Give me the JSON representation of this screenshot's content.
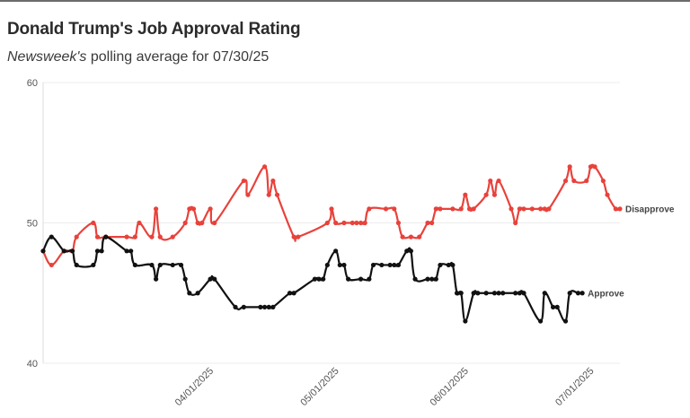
{
  "header": {
    "title": "Donald Trump's Job Approval Rating",
    "subtitle_source": "Newsweek's",
    "subtitle_rest": " polling average for 07/30/25"
  },
  "colors": {
    "approve": "#111111",
    "disapprove": "#e8423b",
    "grid": "#ececec"
  },
  "chart_data": {
    "type": "line",
    "title": "Donald Trump's Job Approval Rating",
    "subtitle": "Newsweek's polling average for 07/30/25",
    "xlabel": "",
    "ylabel": "",
    "ylim": [
      40,
      60
    ],
    "yticks": [
      "40",
      "50",
      "60"
    ],
    "xticks": [
      {
        "label": "04/01/2025",
        "day": 40
      },
      {
        "label": "05/01/2025",
        "day": 70
      },
      {
        "label": "06/01/2025",
        "day": 101
      },
      {
        "label": "07/01/2025",
        "day": 131
      }
    ],
    "x_unit": "day index from 01/20/2025",
    "grid": true,
    "series": [
      {
        "name": "Disapprove",
        "label": "Disapprove",
        "color": "#e8423b",
        "points": [
          [
            0,
            48.0
          ],
          [
            2,
            47.0
          ],
          [
            5,
            48.0
          ],
          [
            7,
            48.0
          ],
          [
            8,
            49.0
          ],
          [
            12,
            50.0
          ],
          [
            13,
            49.0
          ],
          [
            15,
            49.0
          ],
          [
            20,
            49.0
          ],
          [
            22,
            49.0
          ],
          [
            23,
            50.0
          ],
          [
            26,
            49.0
          ],
          [
            27,
            51.0
          ],
          [
            28,
            49.0
          ],
          [
            31,
            49.0
          ],
          [
            34,
            50.0
          ],
          [
            35,
            51.0
          ],
          [
            36,
            51.0
          ],
          [
            37,
            50.0
          ],
          [
            38,
            50.0
          ],
          [
            40,
            51.0
          ],
          [
            41,
            50.0
          ],
          [
            48,
            53.0
          ],
          [
            49,
            52.0
          ],
          [
            53,
            54.0
          ],
          [
            54,
            52.0
          ],
          [
            55,
            53.0
          ],
          [
            56,
            52.0
          ],
          [
            60,
            49.0
          ],
          [
            61,
            49.0
          ],
          [
            68,
            50.0
          ],
          [
            69,
            51.0
          ],
          [
            70,
            50.0
          ],
          [
            72,
            50.0
          ],
          [
            74,
            50.0
          ],
          [
            75,
            50.0
          ],
          [
            76,
            50.0
          ],
          [
            77,
            50.0
          ],
          [
            78,
            51.0
          ],
          [
            82,
            51.0
          ],
          [
            84,
            51.0
          ],
          [
            85,
            50.0
          ],
          [
            86,
            49.0
          ],
          [
            88,
            49.0
          ],
          [
            90,
            49.0
          ],
          [
            92,
            50.0
          ],
          [
            93,
            50.0
          ],
          [
            94,
            51.0
          ],
          [
            95,
            51.0
          ],
          [
            98,
            51.0
          ],
          [
            100,
            51.0
          ],
          [
            101,
            52.0
          ],
          [
            102,
            51.0
          ],
          [
            103,
            51.0
          ],
          [
            106,
            52.0
          ],
          [
            107,
            53.0
          ],
          [
            108,
            52.0
          ],
          [
            109,
            53.0
          ],
          [
            112,
            51.0
          ],
          [
            113,
            50.0
          ],
          [
            114,
            51.0
          ],
          [
            115,
            51.0
          ],
          [
            117,
            51.0
          ],
          [
            119,
            51.0
          ],
          [
            120,
            51.0
          ],
          [
            121,
            51.0
          ],
          [
            125,
            53.0
          ],
          [
            126,
            54.0
          ],
          [
            127,
            53.0
          ],
          [
            130,
            53.0
          ],
          [
            131,
            54.0
          ],
          [
            132,
            54.0
          ],
          [
            134,
            53.0
          ],
          [
            135,
            52.0
          ],
          [
            137,
            51.0
          ],
          [
            138,
            51.0
          ]
        ]
      },
      {
        "name": "Approve",
        "label": "Approve",
        "color": "#111111",
        "points": [
          [
            0,
            48.0
          ],
          [
            2,
            49.0
          ],
          [
            5,
            48.0
          ],
          [
            7,
            48.0
          ],
          [
            8,
            47.0
          ],
          [
            12,
            47.0
          ],
          [
            13,
            48.0
          ],
          [
            14,
            48.0
          ],
          [
            15,
            49.0
          ],
          [
            20,
            48.0
          ],
          [
            21,
            48.0
          ],
          [
            22,
            47.0
          ],
          [
            26,
            47.0
          ],
          [
            27,
            46.0
          ],
          [
            28,
            47.0
          ],
          [
            31,
            47.0
          ],
          [
            33,
            47.0
          ],
          [
            34,
            46.0
          ],
          [
            35,
            45.0
          ],
          [
            37,
            45.0
          ],
          [
            40,
            46.0
          ],
          [
            41,
            46.0
          ],
          [
            46,
            44.0
          ],
          [
            48,
            44.0
          ],
          [
            52,
            44.0
          ],
          [
            53,
            44.0
          ],
          [
            54,
            44.0
          ],
          [
            55,
            44.0
          ],
          [
            59,
            45.0
          ],
          [
            60,
            45.0
          ],
          [
            65,
            46.0
          ],
          [
            66,
            46.0
          ],
          [
            67,
            46.0
          ],
          [
            68,
            47.0
          ],
          [
            70,
            48.0
          ],
          [
            71,
            47.0
          ],
          [
            72,
            47.0
          ],
          [
            73,
            46.0
          ],
          [
            76,
            46.0
          ],
          [
            78,
            46.0
          ],
          [
            79,
            47.0
          ],
          [
            81,
            47.0
          ],
          [
            83,
            47.0
          ],
          [
            84,
            47.0
          ],
          [
            85,
            47.0
          ],
          [
            87,
            48.0
          ],
          [
            88,
            48.0
          ],
          [
            89,
            46.0
          ],
          [
            92,
            46.0
          ],
          [
            93,
            46.0
          ],
          [
            94,
            46.0
          ],
          [
            95,
            47.0
          ],
          [
            97,
            47.0
          ],
          [
            98,
            47.0
          ],
          [
            99,
            45.0
          ],
          [
            100,
            45.0
          ],
          [
            101,
            43.0
          ],
          [
            103,
            45.0
          ],
          [
            104,
            45.0
          ],
          [
            106,
            45.0
          ],
          [
            108,
            45.0
          ],
          [
            109,
            45.0
          ],
          [
            110,
            45.0
          ],
          [
            113,
            45.0
          ],
          [
            114,
            45.0
          ],
          [
            115,
            45.0
          ],
          [
            119,
            43.0
          ],
          [
            120,
            45.0
          ],
          [
            122,
            44.0
          ],
          [
            123,
            44.0
          ],
          [
            125,
            43.0
          ],
          [
            126,
            45.0
          ],
          [
            128,
            45.0
          ],
          [
            129,
            45.0
          ]
        ]
      }
    ]
  }
}
